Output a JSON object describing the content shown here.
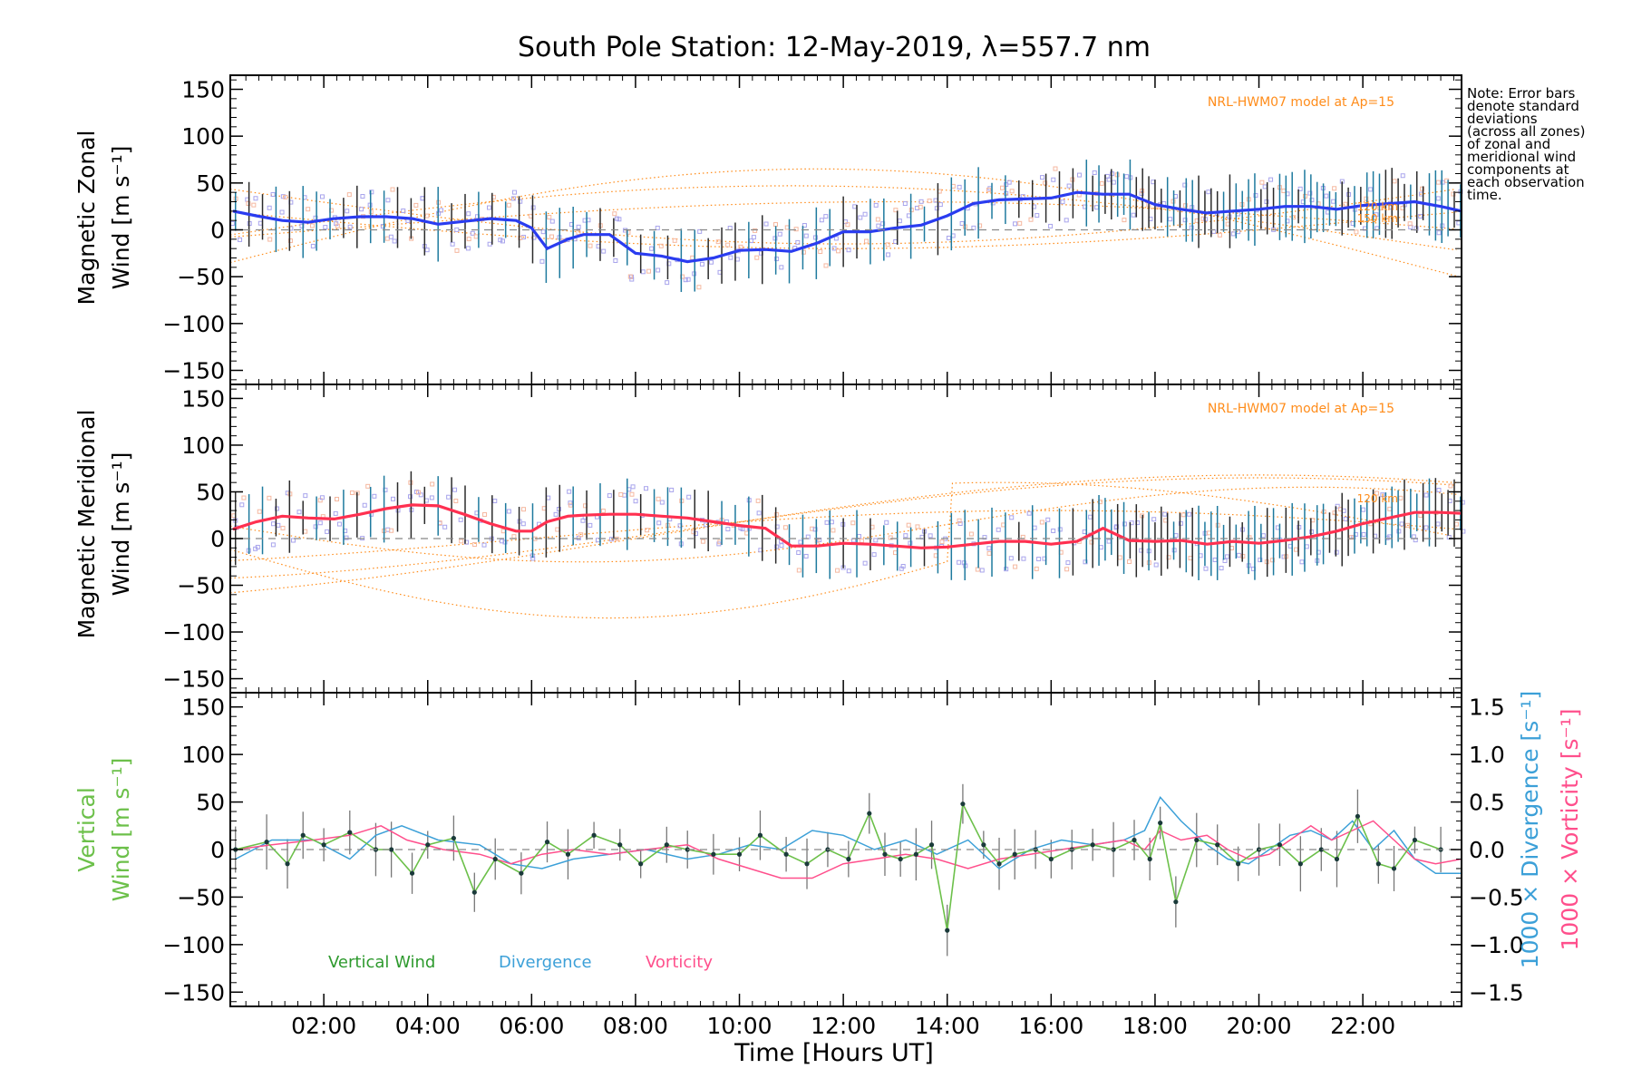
{
  "colors": {
    "zonal": "#2a3cf0",
    "meridional": "#ff3050",
    "vertical": "#6cc04a",
    "divergence": "#3ca0d8",
    "vorticity": "#ff4f8c",
    "model": "#ff8c1a",
    "points": "#a8a4ec",
    "bars": "#2b2b2b"
  },
  "chart_data": {
    "type": "line",
    "title": "South Pole Station: 12-May-2019, λ=557.7 nm",
    "note": [
      "Note: Error bars",
      "denote standard",
      "deviations",
      "(across all zones)",
      "of zonal and",
      "meridional wind",
      "components at",
      "each observation",
      "time."
    ],
    "x_axis": {
      "label": "Time [Hours UT]",
      "range": [
        0.2,
        23.9
      ],
      "ticks": [
        2,
        4,
        6,
        8,
        10,
        12,
        14,
        16,
        18,
        20,
        22
      ],
      "tick_labels": [
        "02:00",
        "04:00",
        "06:00",
        "08:00",
        "10:00",
        "12:00",
        "14:00",
        "16:00",
        "18:00",
        "20:00",
        "22:00"
      ]
    },
    "y_ticks": [
      150,
      100,
      50,
      0,
      -50,
      -100,
      -150
    ],
    "y_tick_labels": [
      "150",
      "100",
      "50",
      "0",
      "−50",
      "−100",
      "−150"
    ],
    "panels": [
      {
        "id": "zonal",
        "ylabel": [
          "Magnetic Zonal",
          "Wind [m s⁻¹]"
        ],
        "ylim": [
          -165,
          165
        ],
        "model_label": "NRL-HWM07 model at Ap=15",
        "model_km_labels": [
          "120 km",
          "150 km"
        ],
        "series": [
          {
            "name": "Magnetic Zonal Wind",
            "x": [
              0.25,
              0.7,
              1.2,
              1.7,
              2.2,
              2.7,
              3.2,
              3.7,
              4.2,
              4.7,
              5.2,
              5.7,
              6.0,
              6.3,
              6.7,
              7.0,
              7.5,
              8.0,
              8.5,
              9.0,
              9.5,
              10.0,
              10.5,
              11.0,
              11.5,
              12.0,
              12.5,
              13.0,
              13.5,
              14.0,
              14.5,
              15.0,
              15.5,
              16.0,
              16.5,
              17.0,
              17.5,
              18.0,
              18.5,
              19.0,
              19.5,
              20.0,
              20.5,
              21.0,
              21.5,
              22.0,
              22.5,
              23.0,
              23.5,
              23.9
            ],
            "y": [
              20,
              15,
              10,
              8,
              12,
              14,
              14,
              12,
              6,
              9,
              12,
              10,
              2,
              -20,
              -10,
              -5,
              -5,
              -25,
              -28,
              -34,
              -30,
              -22,
              -21,
              -23,
              -14,
              -2,
              -2,
              2,
              5,
              15,
              28,
              32,
              33,
              34,
              40,
              38,
              38,
              27,
              22,
              18,
              20,
              22,
              25,
              25,
              22,
              26,
              28,
              30,
              25,
              20
            ]
          }
        ]
      },
      {
        "id": "meridional",
        "ylabel": [
          "Magnetic Meridional",
          "Wind [m s⁻¹]"
        ],
        "ylim": [
          -165,
          165
        ],
        "model_label": "NRL-HWM07 model at Ap=15",
        "model_km_labels": [
          "120 km"
        ],
        "series": [
          {
            "name": "Magnetic Meridional Wind",
            "x": [
              0.25,
              0.7,
              1.2,
              1.7,
              2.2,
              2.7,
              3.2,
              3.7,
              4.2,
              4.7,
              5.2,
              5.7,
              6.0,
              6.3,
              6.7,
              7.0,
              7.5,
              8.0,
              8.5,
              9.0,
              9.5,
              10.0,
              10.5,
              11.0,
              11.5,
              12.0,
              12.5,
              13.0,
              13.5,
              14.0,
              14.5,
              15.0,
              15.5,
              16.0,
              16.5,
              17.0,
              17.5,
              18.0,
              18.5,
              19.0,
              19.5,
              20.0,
              20.5,
              21.0,
              21.5,
              22.0,
              22.5,
              23.0,
              23.5,
              23.9
            ],
            "y": [
              10,
              18,
              24,
              22,
              21,
              26,
              32,
              36,
              35,
              26,
              16,
              8,
              8,
              18,
              24,
              25,
              26,
              26,
              24,
              22,
              18,
              14,
              11,
              -8,
              -8,
              -5,
              -6,
              -8,
              -10,
              -9,
              -6,
              -3,
              -3,
              -6,
              -3,
              11,
              -2,
              -3,
              -2,
              -6,
              -3,
              -5,
              -2,
              2,
              8,
              16,
              22,
              28,
              28,
              27
            ]
          }
        ]
      },
      {
        "id": "vertical",
        "ylabel": [
          "Vertical",
          "Wind [m s⁻¹]"
        ],
        "ylim": [
          -165,
          165
        ],
        "y2_label": "1000 × Divergence [s⁻¹]",
        "y3_label": "1000 × Vorticity [s⁻¹]",
        "y2_ticks": [
          1.5,
          1.0,
          0.5,
          0.0,
          -0.5,
          -1.0,
          -1.5
        ],
        "y2_tick_labels": [
          "1.5",
          "1.0",
          "0.5",
          "0.0",
          "−0.5",
          "−1.0",
          "−1.5"
        ],
        "y2_lim": [
          -1.65,
          1.65
        ],
        "legend": [
          "Vertical Wind",
          "Divergence",
          "Vorticity"
        ],
        "series": [
          {
            "name": "Vertical Wind",
            "axis": "left",
            "x": [
              0.3,
              0.9,
              1.3,
              1.6,
              2.0,
              2.5,
              3.0,
              3.3,
              3.7,
              4.0,
              4.5,
              4.9,
              5.3,
              5.8,
              6.3,
              6.7,
              7.2,
              7.7,
              8.1,
              8.6,
              9.0,
              9.5,
              10.0,
              10.4,
              10.9,
              11.3,
              11.7,
              12.1,
              12.5,
              12.8,
              13.1,
              13.4,
              13.7,
              14.0,
              14.3,
              14.7,
              15.0,
              15.3,
              15.7,
              16.0,
              16.4,
              16.8,
              17.2,
              17.6,
              17.9,
              18.1,
              18.4,
              18.8,
              19.2,
              19.6,
              20.0,
              20.4,
              20.8,
              21.2,
              21.5,
              21.9,
              22.3,
              22.6,
              23.0,
              23.5
            ],
            "y": [
              0,
              8,
              -15,
              15,
              5,
              18,
              0,
              0,
              -25,
              5,
              12,
              -45,
              -10,
              -25,
              8,
              -5,
              15,
              5,
              -15,
              5,
              0,
              -5,
              -5,
              15,
              -5,
              -15,
              0,
              -10,
              38,
              -5,
              -10,
              -5,
              5,
              -85,
              48,
              5,
              -15,
              -5,
              0,
              -10,
              0,
              5,
              0,
              10,
              -10,
              28,
              -55,
              10,
              5,
              -15,
              0,
              5,
              -15,
              0,
              -10,
              35,
              -15,
              -20,
              10,
              0
            ]
          },
          {
            "name": "Divergence",
            "axis": "right",
            "x": [
              0.3,
              1.0,
              1.8,
              2.5,
              3.0,
              3.5,
              4.2,
              5.0,
              5.6,
              6.2,
              6.8,
              7.5,
              8.2,
              9.0,
              9.6,
              10.2,
              10.8,
              11.4,
              12.0,
              12.6,
              13.2,
              13.8,
              14.4,
              15.0,
              15.6,
              16.2,
              16.8,
              17.4,
              17.8,
              18.1,
              18.5,
              19.0,
              19.4,
              19.8,
              20.2,
              20.6,
              21.0,
              21.4,
              21.8,
              22.2,
              22.6,
              23.0,
              23.4,
              23.9
            ],
            "y": [
              -0.1,
              0.1,
              0.1,
              -0.1,
              0.15,
              0.25,
              0.1,
              0.05,
              -0.15,
              -0.2,
              -0.1,
              -0.05,
              0.0,
              -0.1,
              -0.05,
              0.05,
              0.0,
              0.2,
              0.15,
              0.0,
              0.1,
              -0.05,
              0.1,
              -0.2,
              0.0,
              0.1,
              0.05,
              0.1,
              0.2,
              0.55,
              0.3,
              0.05,
              -0.1,
              -0.15,
              0.0,
              0.15,
              0.2,
              0.1,
              0.3,
              0.0,
              0.2,
              -0.1,
              -0.25,
              -0.25
            ]
          },
          {
            "name": "Vorticity",
            "axis": "right",
            "x": [
              0.3,
              1.0,
              1.8,
              2.5,
              3.1,
              3.6,
              4.3,
              5.0,
              5.6,
              6.2,
              6.8,
              7.5,
              8.2,
              9.0,
              9.6,
              10.2,
              10.8,
              11.4,
              12.0,
              12.6,
              13.2,
              13.8,
              14.4,
              15.0,
              15.6,
              16.2,
              16.8,
              17.4,
              17.8,
              18.1,
              18.5,
              19.0,
              19.4,
              19.8,
              20.2,
              20.6,
              21.0,
              21.4,
              21.8,
              22.2,
              22.6,
              23.0,
              23.4,
              23.9
            ],
            "y": [
              0.0,
              0.05,
              0.1,
              0.15,
              0.25,
              0.1,
              0.0,
              -0.05,
              -0.15,
              -0.05,
              0.0,
              -0.05,
              0.0,
              0.05,
              -0.1,
              -0.2,
              -0.3,
              -0.3,
              -0.15,
              -0.1,
              -0.05,
              -0.1,
              -0.2,
              -0.1,
              -0.05,
              0.0,
              0.05,
              0.1,
              0.0,
              0.2,
              0.1,
              0.15,
              0.0,
              -0.1,
              -0.05,
              0.1,
              0.25,
              0.1,
              0.2,
              0.3,
              0.1,
              -0.1,
              -0.15,
              -0.1
            ]
          }
        ]
      }
    ]
  }
}
